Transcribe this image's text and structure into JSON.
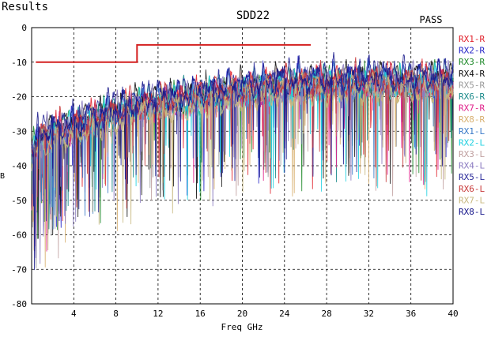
{
  "panel": {
    "heading": "Results"
  },
  "chart_data": {
    "type": "line",
    "title": "SDD22",
    "status": "PASS",
    "status_color": "#2e8b2e",
    "xlabel": "Freq GHz",
    "ylabel": "dB",
    "xlim": [
      0,
      40
    ],
    "ylim": [
      -80,
      0
    ],
    "x_ticks": [
      4,
      8,
      12,
      16,
      20,
      24,
      28,
      32,
      36,
      40
    ],
    "y_ticks": [
      0,
      -10,
      -20,
      -30,
      -40,
      -50,
      -60,
      -70,
      -80
    ],
    "grid": true,
    "legend_position": "right",
    "limit_line": {
      "color": "#d42020",
      "points": [
        [
          0.4,
          -10
        ],
        [
          10,
          -10
        ],
        [
          10,
          -5
        ],
        [
          26.5,
          -5
        ]
      ]
    },
    "series": [
      {
        "name": "RX1-R",
        "color": "#e0202a",
        "offset": 0.3
      },
      {
        "name": "RX2-R",
        "color": "#2424c8",
        "offset": 1.1
      },
      {
        "name": "RX3-R",
        "color": "#1f8a2a",
        "offset": -0.4
      },
      {
        "name": "RX4-R",
        "color": "#111111",
        "offset": 0.8
      },
      {
        "name": "RX5-R",
        "color": "#9a9a9a",
        "offset": -1.0
      },
      {
        "name": "RX6-R",
        "color": "#1a8a8a",
        "offset": 0.2
      },
      {
        "name": "RX7-R",
        "color": "#e0208a",
        "offset": -0.6
      },
      {
        "name": "RX8-R",
        "color": "#d8b070",
        "offset": -1.5
      },
      {
        "name": "RX1-L",
        "color": "#3a7ac8",
        "offset": 0.5
      },
      {
        "name": "RX2-L",
        "color": "#20d0e0",
        "offset": -0.8
      },
      {
        "name": "RX3-L",
        "color": "#c0a0a0",
        "offset": -1.2
      },
      {
        "name": "RX4-L",
        "color": "#8a7ac0",
        "offset": 0.0
      },
      {
        "name": "RX5-L",
        "color": "#2a2a9a",
        "offset": 1.4
      },
      {
        "name": "RX6-L",
        "color": "#c83a3a",
        "offset": 0.6
      },
      {
        "name": "RX7-L",
        "color": "#c8b880",
        "offset": -2.0
      },
      {
        "name": "RX8-L",
        "color": "#16168a",
        "offset": 1.8
      }
    ]
  }
}
